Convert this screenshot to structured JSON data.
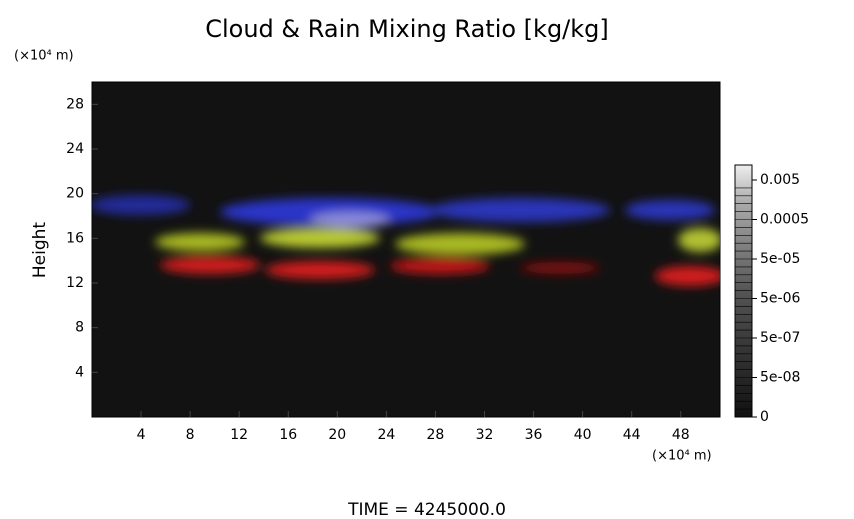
{
  "chart_data": {
    "type": "image",
    "title": "Cloud & Rain Mixing Ratio [kg/kg]",
    "y_label": "Height",
    "x_unit": "(×10⁴ m)",
    "y_unit": "(×10⁴ m)",
    "xlim": [
      0,
      51.2
    ],
    "xticks": [
      4,
      8,
      12,
      16,
      20,
      24,
      28,
      32,
      36,
      40,
      44,
      48
    ],
    "ylim": [
      0,
      30
    ],
    "yticks": [
      4,
      8,
      12,
      16,
      20,
      24,
      28
    ],
    "colorbar_ticks": [
      0,
      {
        "value": 5e-08,
        "label": "5e-08"
      },
      {
        "value": 5e-07,
        "label": "5e-07"
      },
      {
        "value": 5e-06,
        "label": "5e-06"
      },
      {
        "value": 5e-05,
        "label": "5e-05"
      },
      0.0005,
      0.005
    ],
    "footer": "TIME = 4245000.0"
  }
}
